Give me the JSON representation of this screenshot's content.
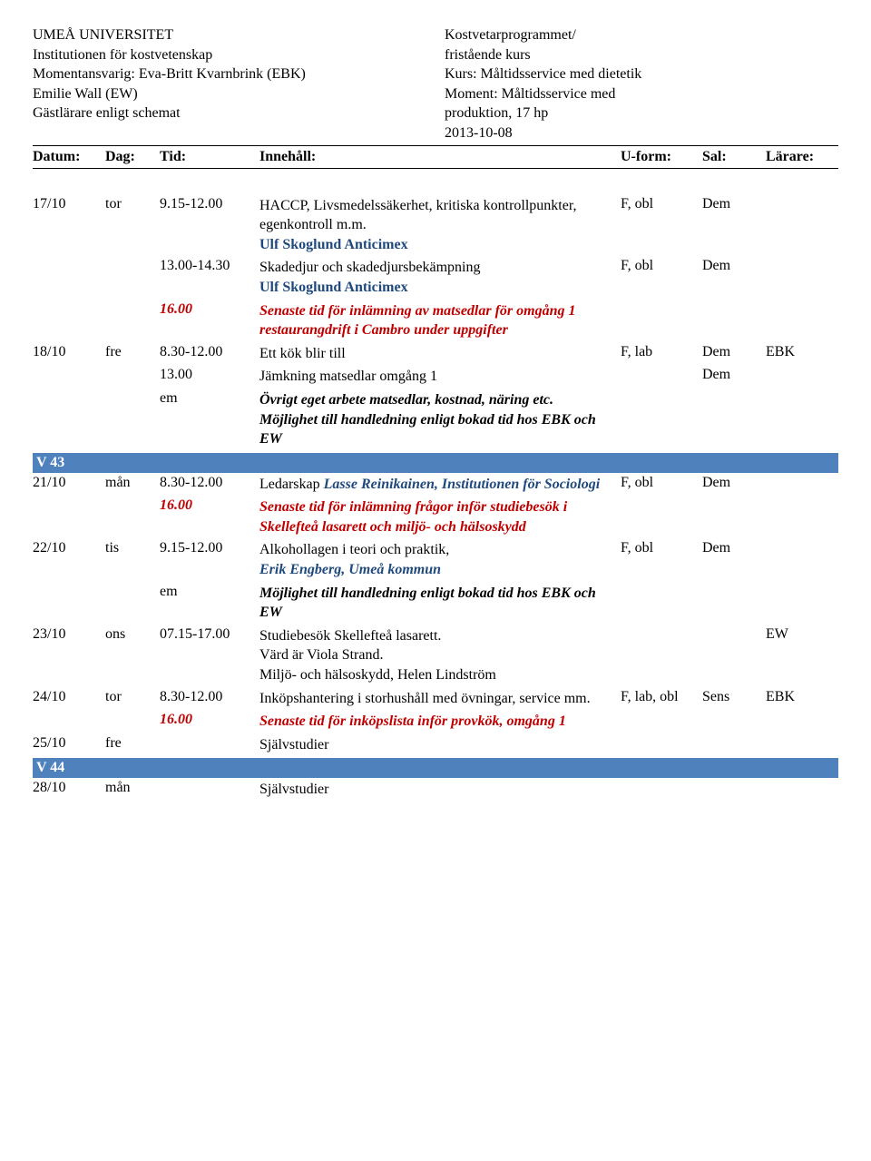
{
  "header": {
    "left": [
      "UMEÅ UNIVERSITET",
      "Institutionen för kostvetenskap",
      "Momentansvarig: Eva-Britt Kvarnbrink (EBK)",
      "Emilie Wall (EW)",
      "Gästlärare enligt schemat"
    ],
    "right": [
      "Kostvetarprogrammet/",
      "fristående kurs",
      "Kurs: Måltidsservice med dietetik",
      "Moment: Måltidsservice med",
      "produktion, 17 hp",
      "2013-10-08"
    ]
  },
  "columns": {
    "datum": "Datum:",
    "dag": "Dag:",
    "tid": "Tid:",
    "innehall": "Innehåll:",
    "uform": "U-form:",
    "sal": "Sal:",
    "larare": "Lärare:"
  },
  "rows": [
    {
      "datum": "17/10",
      "dag": "tor",
      "tid": "9.15-12.00",
      "content": [
        {
          "text": "HACCP, Livsmedelssäkerhet, kritiska kontrollpunkter, egenkontroll m.m.",
          "style": "plain"
        },
        {
          "text": "Ulf Skoglund Anticimex",
          "style": "blue-bold"
        }
      ],
      "uform": "F, obl",
      "sal": "Dem",
      "larare": ""
    },
    {
      "datum": "",
      "dag": "",
      "tid": "13.00-14.30",
      "content": [
        {
          "text": "Skadedjur och skadedjursbekämpning",
          "style": "plain"
        },
        {
          "text": "Ulf Skoglund Anticimex",
          "style": "blue-bold"
        }
      ],
      "uform": "F, obl",
      "sal": "Dem",
      "larare": ""
    },
    {
      "datum": "",
      "dag": "",
      "tid": "16.00",
      "tid_style": "red-italic-bold",
      "content": [
        {
          "text": "Senaste tid för inlämning av matsedlar för omgång 1 restaurangdrift i Cambro under uppgifter",
          "style": "red-italic-bold"
        }
      ],
      "uform": "",
      "sal": "",
      "larare": ""
    },
    {
      "datum": "18/10",
      "dag": "fre",
      "tid": "8.30-12.00",
      "content": [
        {
          "text": "Ett kök blir till",
          "style": "plain"
        }
      ],
      "uform": "F, lab",
      "sal": "Dem",
      "larare": "EBK"
    },
    {
      "datum": "",
      "dag": "",
      "tid": "13.00",
      "content": [
        {
          "text": "Jämkning matsedlar omgång 1",
          "style": "plain"
        }
      ],
      "uform": "",
      "sal": "Dem",
      "larare": ""
    },
    {
      "datum": "",
      "dag": "",
      "tid": "em",
      "content": [
        {
          "text": "Övrigt eget arbete matsedlar, kostnad, näring etc.",
          "style": "black-italic-bold"
        },
        {
          "text": "Möjlighet till handledning enligt bokad tid hos EBK och EW",
          "style": "black-italic-bold"
        }
      ],
      "uform": "",
      "sal": "",
      "larare": ""
    },
    {
      "week": "V 43"
    },
    {
      "datum": "21/10",
      "dag": "mån",
      "tid": "8.30-12.00",
      "content": [
        {
          "parts": [
            {
              "text": "Ledarskap ",
              "style": "plain"
            },
            {
              "text": "Lasse Reinikainen, Institutionen för Sociologi",
              "style": "inline-blue-italic-bold"
            }
          ]
        }
      ],
      "uform": "F, obl",
      "sal": "Dem",
      "larare": ""
    },
    {
      "datum": "",
      "dag": "",
      "tid": "16.00",
      "tid_style": "red-italic-bold",
      "content": [
        {
          "text": "Senaste tid för inlämning frågor inför studiebesök i Skellefteå lasarett och miljö- och hälsoskydd",
          "style": "red-italic-bold"
        }
      ],
      "uform": "",
      "sal": "",
      "larare": ""
    },
    {
      "datum": "22/10",
      "dag": "tis",
      "tid": "9.15-12.00",
      "content": [
        {
          "text": "Alkohollagen i teori och praktik,",
          "style": "plain"
        },
        {
          "text": "Erik Engberg, Umeå kommun",
          "style": "blue-italic-bold"
        }
      ],
      "uform": "F, obl",
      "sal": "Dem",
      "larare": ""
    },
    {
      "datum": "",
      "dag": "",
      "tid": "em",
      "content": [
        {
          "text": "Möjlighet till handledning enligt bokad tid hos EBK och EW",
          "style": "black-italic-bold"
        }
      ],
      "uform": "",
      "sal": "",
      "larare": ""
    },
    {
      "datum": "23/10",
      "dag": "ons",
      "tid": "07.15-17.00",
      "content": [
        {
          "text": "Studiebesök Skellefteå lasarett.",
          "style": "plain"
        },
        {
          "text": "Värd är Viola Strand.",
          "style": "plain"
        },
        {
          "text": "Miljö- och hälsoskydd, Helen Lindström",
          "style": "plain"
        }
      ],
      "uform": "",
      "sal": "",
      "larare": "EW"
    },
    {
      "datum": "24/10",
      "dag": "tor",
      "tid": "8.30-12.00",
      "content": [
        {
          "text": "Inköpshantering i storhushåll med övningar, service mm.",
          "style": "plain"
        }
      ],
      "uform": "F, lab, obl",
      "sal": "Sens",
      "larare": "EBK"
    },
    {
      "datum": "",
      "dag": "",
      "tid": "16.00",
      "tid_style": "red-italic-bold",
      "content": [
        {
          "text": "Senaste tid för inköpslista inför provkök, omgång 1",
          "style": "red-italic-bold"
        }
      ],
      "uform": "",
      "sal": "",
      "larare": ""
    },
    {
      "datum": "25/10",
      "dag": "fre",
      "tid": "",
      "content": [
        {
          "text": "Självstudier",
          "style": "plain"
        }
      ],
      "uform": "",
      "sal": "",
      "larare": ""
    },
    {
      "week": "V 44"
    },
    {
      "datum": "28/10",
      "dag": "mån",
      "tid": "",
      "content": [
        {
          "text": "Självstudier",
          "style": "plain"
        }
      ],
      "uform": "",
      "sal": "",
      "larare": ""
    }
  ]
}
